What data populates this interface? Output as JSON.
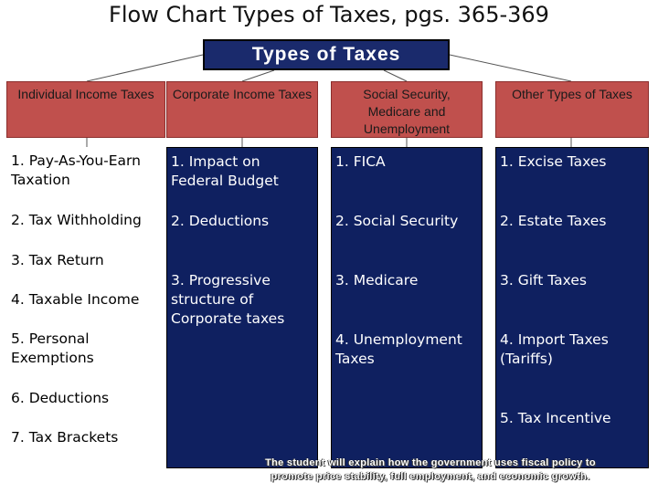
{
  "title": "Flow Chart Types of Taxes, pgs. 365-369",
  "root": "Types of Taxes",
  "categories": [
    {
      "label": "Individual Income Taxes",
      "items": [
        "1. Pay-As-You-Earn\nTaxation",
        "2. Tax Withholding",
        "3. Tax Return",
        "4. Taxable Income",
        "5. Personal\nExemptions",
        "6. Deductions",
        "7. Tax Brackets"
      ]
    },
    {
      "label": "Corporate Income Taxes",
      "items": [
        "1. Impact on\nFederal Budget",
        "2. Deductions",
        "3. Progressive\nstructure of\nCorporate taxes"
      ]
    },
    {
      "label": "Social Security, Medicare and Unemployment",
      "items": [
        "1. FICA",
        "2. Social Security",
        "3. Medicare",
        "4. Unemployment\nTaxes"
      ]
    },
    {
      "label": "Other Types of Taxes",
      "items": [
        "1. Excise Taxes",
        "2. Estate Taxes",
        "3. Gift Taxes",
        "4. Import Taxes\n(Tariffs)",
        "5. Tax Incentive"
      ]
    }
  ],
  "footer": "The student will explain how the government uses fiscal policy to\npromote price stability, full employment, and economic growth.",
  "colors": {
    "root": "#1a2a6c",
    "category": "#c0504d",
    "column": "#0f2060"
  }
}
